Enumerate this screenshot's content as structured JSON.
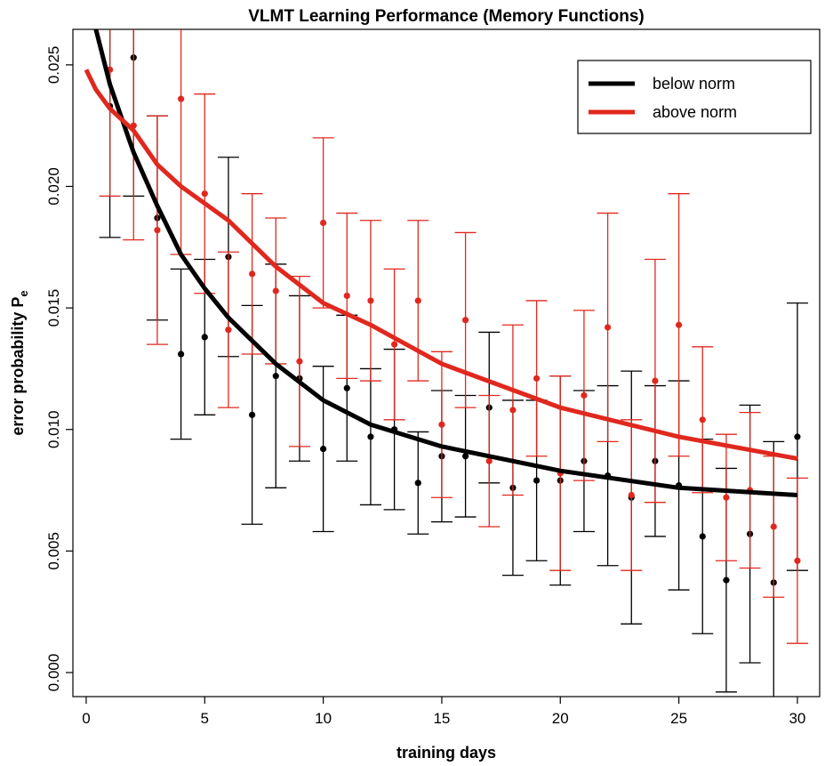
{
  "chart_data": {
    "type": "errorbar_scatter",
    "title": "VLMT Learning Performance (Memory Functions)",
    "x_label": "training days",
    "y_label": "error probability P",
    "y_label_subscript": "e",
    "x": [
      1,
      2,
      3,
      4,
      5,
      6,
      7,
      8,
      9,
      10,
      11,
      12,
      13,
      14,
      15,
      16,
      17,
      18,
      19,
      20,
      21,
      22,
      23,
      24,
      25,
      26,
      27,
      28,
      29,
      30
    ],
    "fit_x": [
      0,
      0.4,
      1,
      2,
      3,
      4,
      5,
      6,
      8,
      10,
      12,
      15,
      20,
      25,
      30
    ],
    "series": [
      {
        "name": "below norm",
        "color": "#000000",
        "values": [
          0.0233,
          0.0253,
          0.0187,
          0.0131,
          0.0138,
          0.0171,
          0.0106,
          0.0122,
          0.0121,
          0.0092,
          0.0117,
          0.0097,
          0.01,
          0.0078,
          0.0089,
          0.0089,
          0.0109,
          0.0076,
          0.0079,
          0.0079,
          0.0087,
          0.0081,
          0.0072,
          0.0087,
          0.0077,
          0.0056,
          0.0038,
          0.0057,
          0.0037,
          0.0097
        ],
        "errors": [
          0.0054,
          0.0057,
          0.0042,
          0.0035,
          0.0032,
          0.0041,
          0.0045,
          0.0046,
          0.0034,
          0.0034,
          0.003,
          0.0028,
          0.0033,
          0.0021,
          0.0027,
          0.0025,
          0.0031,
          0.0036,
          0.0033,
          0.0043,
          0.0029,
          0.0037,
          0.0052,
          0.0031,
          0.0043,
          0.004,
          0.0046,
          0.0053,
          0.0058,
          0.0055
        ],
        "fit_values": [
          null,
          0.0265,
          0.0242,
          0.0214,
          0.0192,
          0.0172,
          0.0158,
          0.0146,
          0.0127,
          0.0112,
          0.0102,
          0.0093,
          0.0083,
          0.0076,
          0.0073
        ]
      },
      {
        "name": "above norm",
        "color": "#e0281e",
        "values": [
          0.0248,
          0.0225,
          0.0182,
          0.0236,
          0.0197,
          0.0141,
          0.0164,
          0.0157,
          0.0128,
          0.0185,
          0.0155,
          0.0153,
          0.0135,
          0.0153,
          0.0102,
          0.0145,
          0.0087,
          0.0108,
          0.0121,
          0.0082,
          0.0114,
          0.0142,
          0.0073,
          0.012,
          0.0143,
          0.0104,
          0.0072,
          0.0075,
          0.006,
          0.0046
        ],
        "errors": [
          0.0052,
          0.0047,
          0.0047,
          0.0064,
          0.0041,
          0.0032,
          0.0033,
          0.003,
          0.0035,
          0.0035,
          0.0034,
          0.0033,
          0.0031,
          0.0033,
          0.003,
          0.0036,
          0.0027,
          0.0035,
          0.0032,
          0.004,
          0.0035,
          0.0047,
          0.0031,
          0.005,
          0.0054,
          0.003,
          0.0026,
          0.0032,
          0.0029,
          0.0034
        ],
        "fit_values": [
          0.0248,
          0.024,
          0.0232,
          0.0223,
          0.0209,
          0.02,
          0.0193,
          0.0186,
          0.0167,
          0.0152,
          0.0143,
          0.0127,
          0.0109,
          0.0097,
          0.0088
        ]
      }
    ],
    "xlim": [
      -0.56,
      30.94
    ],
    "ylim": [
      -0.00099,
      0.02646
    ],
    "xticks": [
      0,
      5,
      10,
      15,
      20,
      25,
      30
    ],
    "yticks": [
      {
        "value": 0,
        "label": "0.000"
      },
      {
        "value": 0.005,
        "label": "0.005"
      },
      {
        "value": 0.01,
        "label": "0.010"
      },
      {
        "value": 0.015,
        "label": "0.015"
      },
      {
        "value": 0.02,
        "label": "0.020"
      },
      {
        "value": 0.025,
        "label": "0.025"
      }
    ],
    "legend_position": "top-right"
  }
}
